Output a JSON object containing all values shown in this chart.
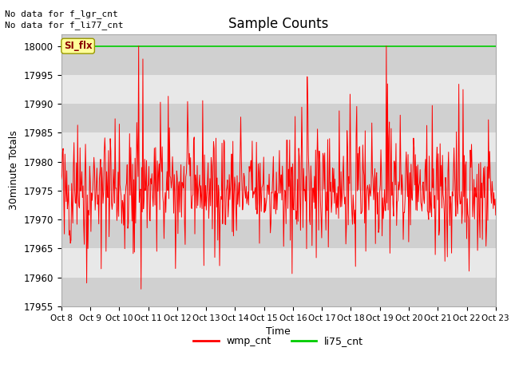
{
  "title": "Sample Counts",
  "xlabel": "Time",
  "ylabel": "30minute Totals",
  "ylim": [
    17955,
    18002
  ],
  "xlim": [
    0,
    360
  ],
  "fig_bg_color": "#ffffff",
  "plot_bg_color_dark": "#d0d0d0",
  "plot_bg_color_light": "#e8e8e8",
  "annotation_text1": "No data for f_lgr_cnt",
  "annotation_text2": "No data for f_li77_cnt",
  "annotation_box_text": "SI_flx",
  "x_tick_labels": [
    "Oct 8",
    "Oct 9",
    "Oct 10",
    "Oct 11",
    "Oct 12",
    "Oct 13",
    "Oct 14",
    "Oct 15",
    "Oct 16",
    "Oct 17",
    "Oct 18",
    "Oct 19",
    "Oct 20",
    "Oct 21",
    "Oct 22",
    "Oct 23"
  ],
  "legend_labels": [
    "wmp_cnt",
    "li75_cnt"
  ],
  "legend_colors": [
    "#ff0000",
    "#00cc00"
  ],
  "wmp_seed": 42,
  "li75_value": 18000,
  "ytick_values": [
    17955,
    17960,
    17965,
    17970,
    17975,
    17980,
    17985,
    17990,
    17995,
    18000
  ]
}
